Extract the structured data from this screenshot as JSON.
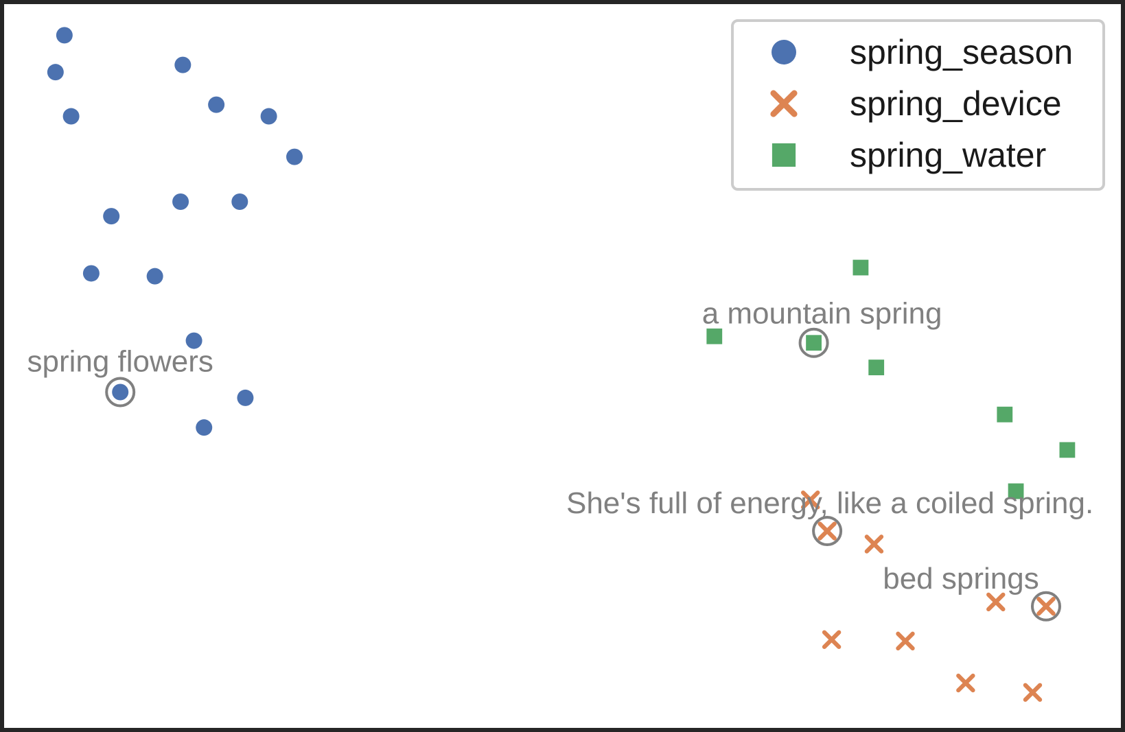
{
  "chart_data": {
    "type": "scatter",
    "title": "",
    "xlabel": "",
    "ylabel": "",
    "axes_visible": false,
    "grid": false,
    "xlim": [
      0,
      100
    ],
    "ylim": [
      0,
      100
    ],
    "legend": {
      "placement": "top-right"
    },
    "series": [
      {
        "name": "spring_season",
        "marker": "circle",
        "color": "#4c72b0",
        "points": [
          {
            "x": 5.4,
            "y": 95.7
          },
          {
            "x": 4.6,
            "y": 90.6
          },
          {
            "x": 16.0,
            "y": 91.6
          },
          {
            "x": 6.0,
            "y": 84.5
          },
          {
            "x": 19.0,
            "y": 86.1
          },
          {
            "x": 23.7,
            "y": 84.5
          },
          {
            "x": 26.0,
            "y": 78.9
          },
          {
            "x": 15.8,
            "y": 72.7
          },
          {
            "x": 21.1,
            "y": 72.7
          },
          {
            "x": 9.6,
            "y": 70.7
          },
          {
            "x": 7.8,
            "y": 62.8
          },
          {
            "x": 13.5,
            "y": 62.4
          },
          {
            "x": 17.0,
            "y": 53.5
          },
          {
            "x": 10.4,
            "y": 46.4
          },
          {
            "x": 21.6,
            "y": 45.6
          },
          {
            "x": 17.9,
            "y": 41.5
          }
        ]
      },
      {
        "name": "spring_device",
        "marker": "x",
        "color": "#dd8452",
        "points": [
          {
            "x": 72.2,
            "y": 31.5
          },
          {
            "x": 73.7,
            "y": 27.2
          },
          {
            "x": 77.9,
            "y": 25.4
          },
          {
            "x": 88.8,
            "y": 17.4
          },
          {
            "x": 93.3,
            "y": 16.8
          },
          {
            "x": 74.1,
            "y": 12.2
          },
          {
            "x": 80.7,
            "y": 12.0
          },
          {
            "x": 86.1,
            "y": 6.2
          },
          {
            "x": 92.1,
            "y": 4.9
          }
        ]
      },
      {
        "name": "spring_water",
        "marker": "square",
        "color": "#55a868",
        "points": [
          {
            "x": 76.7,
            "y": 63.6
          },
          {
            "x": 63.6,
            "y": 54.1
          },
          {
            "x": 72.5,
            "y": 53.2
          },
          {
            "x": 78.1,
            "y": 49.8
          },
          {
            "x": 89.6,
            "y": 43.3
          },
          {
            "x": 95.2,
            "y": 38.4
          },
          {
            "x": 90.6,
            "y": 32.7
          }
        ]
      }
    ],
    "annotations": [
      {
        "text": "spring flowers",
        "x": 10.4,
        "y": 46.4
      },
      {
        "text": "a mountain spring",
        "x": 72.5,
        "y": 53.2
      },
      {
        "text": "She's full of energy, like a coiled spring.",
        "x": 73.7,
        "y": 27.2
      },
      {
        "text": "bed springs",
        "x": 93.3,
        "y": 16.8
      }
    ]
  }
}
